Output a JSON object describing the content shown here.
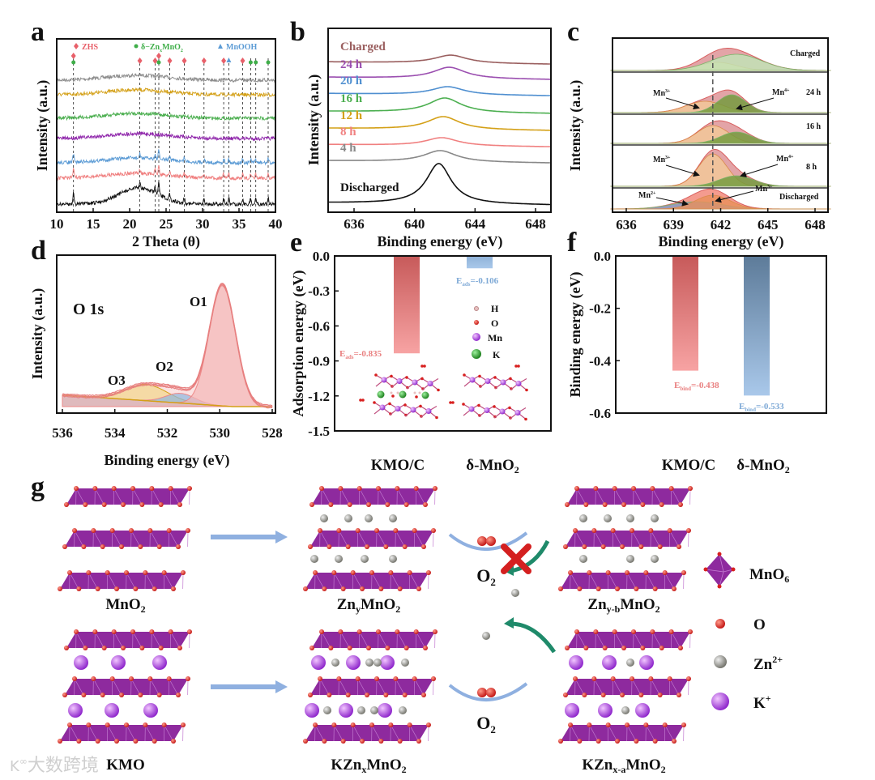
{
  "panel_labels": [
    "a",
    "b",
    "c",
    "d",
    "e",
    "f",
    "g"
  ],
  "chart_data": [
    {
      "panel": "a",
      "type": "line",
      "xlabel": "2 Theta (θ)",
      "ylabel": "Intensity (a.u.)",
      "xlim": [
        10,
        40
      ],
      "xticks": [
        10,
        15,
        20,
        25,
        30,
        35,
        40
      ],
      "legend": [
        {
          "label": "ZHS",
          "marker": "diamond",
          "color": "#e8606a"
        },
        {
          "label_parts": [
            "δ−Zn",
            "x",
            "MnO",
            "2"
          ],
          "marker": "circle",
          "color": "#3fae49"
        },
        {
          "label": "MnOOH",
          "marker": "triangle",
          "color": "#5b9bd5"
        }
      ],
      "reference_peaks": {
        "ZHS": [
          12.3,
          21.4,
          23.5,
          24.0,
          25.5,
          27.5,
          30.2,
          32.9,
          35.5
        ],
        "delta_ZnxMnO2": [
          12.3,
          24.0,
          36.6,
          37.3,
          39.0
        ],
        "MnOOH": [
          33.6
        ]
      },
      "series_colors": [
        "#8c8c8c",
        "#d4a017",
        "#4caf50",
        "#8e24aa",
        "#5b9bd5",
        "#f08080",
        "#111111"
      ]
    },
    {
      "panel": "b",
      "type": "line",
      "xlabel": "Binding energy (eV)",
      "ylabel": "Intensity (a.u.)",
      "xlim": [
        635,
        649
      ],
      "xticks": [
        636,
        640,
        644,
        648
      ],
      "series": [
        {
          "name": "Charged",
          "color": "#9a5f5f",
          "center": 642.4,
          "height": 10
        },
        {
          "name": "24 h",
          "color": "#9b4fb0",
          "center": 642.3,
          "height": 14
        },
        {
          "name": "20 h",
          "color": "#4f8fd0",
          "center": 642.2,
          "height": 10
        },
        {
          "name": "16 h",
          "color": "#4caf50",
          "center": 642.0,
          "height": 18
        },
        {
          "name": "12 h",
          "color": "#d4a017",
          "center": 641.9,
          "height": 16
        },
        {
          "name": "8 h",
          "color": "#f08080",
          "center": 641.8,
          "height": 10
        },
        {
          "name": "4 h",
          "color": "#888888",
          "center": 641.7,
          "height": 14
        },
        {
          "name": "Discharged",
          "color": "#111111",
          "center": 641.6,
          "height": 50
        }
      ]
    },
    {
      "panel": "c",
      "type": "area",
      "xlabel": "Binding energy (eV)",
      "ylabel": "Intensity (a.u.)",
      "xlim": [
        635,
        649
      ],
      "xticks": [
        636,
        639,
        642,
        645,
        648
      ],
      "reference_line": 641.5,
      "rows": [
        {
          "name": "Charged",
          "components": [
            {
              "species": "Mn3+",
              "center": 641.8,
              "sigma": 1.2,
              "amp": 10
            },
            {
              "species": "Mn4+",
              "center": 643.0,
              "sigma": 1.6,
              "amp": 20
            }
          ]
        },
        {
          "name": "24 h",
          "components": [
            {
              "species": "Mn3+",
              "center": 641.0,
              "sigma": 1.2,
              "amp": 14
            },
            {
              "species": "Mn4+",
              "center": 642.7,
              "sigma": 0.9,
              "amp": 22
            }
          ]
        },
        {
          "name": "16 h",
          "components": [
            {
              "species": "Mn3+",
              "center": 641.5,
              "sigma": 1.0,
              "amp": 22
            },
            {
              "species": "Mn4+",
              "center": 643.0,
              "sigma": 1.0,
              "amp": 14
            }
          ]
        },
        {
          "name": "8 h",
          "components": [
            {
              "species": "Mn3+",
              "center": 641.5,
              "sigma": 0.9,
              "amp": 40
            },
            {
              "species": "Mn4+",
              "center": 643.0,
              "sigma": 1.1,
              "amp": 13
            }
          ]
        },
        {
          "name": "Discharged",
          "components": [
            {
              "species": "Mn2+",
              "center": 640.5,
              "sigma": 1.6,
              "amp": 9
            },
            {
              "species": "Mn3+",
              "center": 641.5,
              "sigma": 1.1,
              "amp": 17
            }
          ]
        }
      ],
      "annotations": {
        "mn": "Mn",
        "mn2": "2+",
        "mn3": "3+",
        "mn4": "4+"
      }
    },
    {
      "panel": "d",
      "type": "area",
      "title": "O 1s",
      "xlabel": "Binding energy (eV)",
      "ylabel": "Intensity (a.u.)",
      "xlim": [
        536,
        528
      ],
      "xticks": [
        536,
        534,
        532,
        530,
        528
      ],
      "components": [
        {
          "name": "O1",
          "center": 529.9,
          "sigma": 0.5,
          "amp": 150,
          "color": "#f4b6b6"
        },
        {
          "name": "O2",
          "center": 531.5,
          "sigma": 0.55,
          "amp": 12,
          "color": "#8fb7de"
        },
        {
          "name": "O3",
          "center": 532.8,
          "sigma": 0.8,
          "amp": 20,
          "color": "#f2d68a"
        }
      ]
    },
    {
      "panel": "e",
      "type": "bar",
      "ylabel": "Adsorption energy (eV)",
      "ylim": [
        -1.5,
        0
      ],
      "yticks": [
        "0.0",
        "-0.3",
        "-0.6",
        "-0.9",
        "-1.2",
        "-1.5"
      ],
      "categories": [
        "KMO/C",
        "δ-MnO2"
      ],
      "category_parts": [
        [
          "KMO/C"
        ],
        [
          "δ-MnO",
          "2"
        ]
      ],
      "values": [
        -0.835,
        -0.106
      ],
      "annotations": [
        {
          "E": "E",
          "sub": "ads",
          "text": "=-0.835",
          "color": "#e98080"
        },
        {
          "E": "E",
          "sub": "ads",
          "text": "=-0.106",
          "color": "#7ea9d6"
        }
      ],
      "atom_legend": [
        "H",
        "O",
        "Mn",
        "K"
      ]
    },
    {
      "panel": "f",
      "type": "bar",
      "ylabel": "Binding energy (eV)",
      "ylim": [
        -0.6,
        0
      ],
      "yticks": [
        "0.0",
        "-0.2",
        "-0.4",
        "-0.6"
      ],
      "categories": [
        "KMO/C",
        "δ-MnO2"
      ],
      "category_parts": [
        [
          "KMO/C"
        ],
        [
          "δ-MnO",
          "2"
        ]
      ],
      "values": [
        -0.438,
        -0.533
      ],
      "annotations": [
        {
          "E": "E",
          "sub": "bind",
          "text": "=-0.438",
          "color": "#e98080"
        },
        {
          "E": "E",
          "sub": "bind",
          "text": "=-0.533",
          "color": "#7ea9d6"
        }
      ]
    }
  ],
  "schematic": {
    "mno2": [
      "MnO",
      "2"
    ],
    "zny_mno2": [
      "Zn",
      "y",
      "MnO",
      "2"
    ],
    "znyb_mno2": [
      "Zn",
      "y-b",
      "MnO",
      "2"
    ],
    "kmo": "KMO",
    "kznx_mno2": [
      "KZn",
      "x",
      "MnO",
      "2"
    ],
    "kznxa_mno2": [
      "KZn",
      "x-a",
      "MnO",
      "2"
    ],
    "o2": [
      "O",
      "2"
    ],
    "legend": {
      "mno6": [
        "MnO",
        "6"
      ],
      "o": "O",
      "zn": [
        "Zn",
        "2+"
      ],
      "k": [
        "K",
        "+"
      ]
    }
  },
  "watermark": "大数跨境",
  "colors": {
    "octahedron": "#8e2a9e",
    "oxygen": "#d8201f",
    "zinc": "#8a8a80",
    "potassium": "#9b30d9",
    "arrow": "#8fb0e0",
    "cycle_arrow": "#1f8a6a"
  }
}
